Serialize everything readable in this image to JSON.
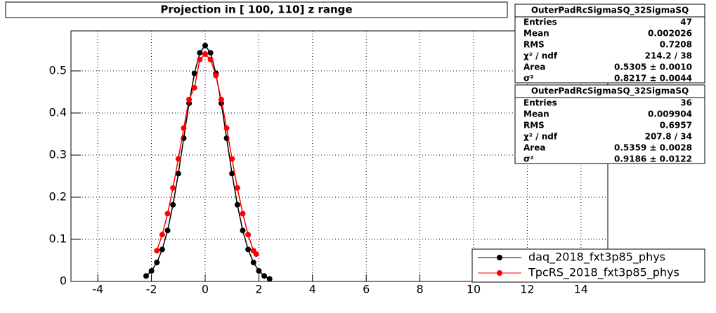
{
  "chart_data": {
    "type": "scatter",
    "title": "Projection in [ 100, 110] z range",
    "xlim": [
      -5,
      15
    ],
    "ylim": [
      0,
      0.595
    ],
    "xticks": [
      -4,
      -2,
      0,
      2,
      4,
      6,
      8,
      10,
      12,
      14
    ],
    "yticks": [
      0,
      0.1,
      0.2,
      0.3,
      0.4,
      0.5
    ],
    "grid": true,
    "legend": "bottom-right",
    "series": [
      {
        "name": "daq_2018_fxt3p85_phys",
        "color": "#000000",
        "x": [
          -2.2,
          -2.0,
          -1.8,
          -1.6,
          -1.4,
          -1.2,
          -1.0,
          -0.8,
          -0.6,
          -0.4,
          -0.2,
          0,
          0.2,
          0.4,
          0.6,
          0.8,
          1.0,
          1.2,
          1.4,
          1.6,
          1.8,
          2.0,
          2.2,
          2.4
        ],
        "values": [
          0.013,
          0.025,
          0.045,
          0.076,
          0.121,
          0.182,
          0.256,
          0.34,
          0.423,
          0.494,
          0.543,
          0.56,
          0.543,
          0.494,
          0.423,
          0.34,
          0.256,
          0.182,
          0.121,
          0.076,
          0.045,
          0.025,
          0.013,
          0.006
        ]
      },
      {
        "name": "TpcRS_2018_fxt3p85_phys",
        "color": "#ff0000",
        "x": [
          -1.8,
          -1.6,
          -1.4,
          -1.2,
          -1.0,
          -0.8,
          -0.6,
          -0.4,
          -0.2,
          0,
          0.2,
          0.4,
          0.6,
          0.8,
          1.0,
          1.2,
          1.4,
          1.6,
          1.8,
          1.9
        ],
        "values": [
          0.073,
          0.111,
          0.161,
          0.222,
          0.291,
          0.364,
          0.432,
          0.46,
          0.527,
          0.54,
          0.527,
          0.489,
          0.432,
          0.364,
          0.291,
          0.222,
          0.161,
          0.111,
          0.073,
          0.065
        ]
      }
    ]
  },
  "stats": [
    {
      "title": "OuterPadRcSigmaSQ_32SigmaSQ",
      "rows": [
        [
          "Entries",
          47
        ],
        [
          "Mean",
          0.002026
        ],
        [
          "RMS",
          0.7208
        ],
        [
          "χ² / ndf",
          "214.2 / 38"
        ],
        [
          "Area",
          "0.5305 ± 0.0010"
        ],
        [
          "σ²",
          "0.8217 ± 0.0044"
        ]
      ]
    },
    {
      "title": "OuterPadRcSigmaSQ_32SigmaSQ",
      "rows": [
        [
          "Entries",
          36
        ],
        [
          "Mean",
          0.009904
        ],
        [
          "RMS",
          0.6957
        ],
        [
          "χ² / ndf",
          "207.8 / 34"
        ],
        [
          "Area",
          "0.5359 ± 0.0028"
        ],
        [
          "σ²",
          "0.9186 ± 0.0122"
        ]
      ]
    }
  ]
}
